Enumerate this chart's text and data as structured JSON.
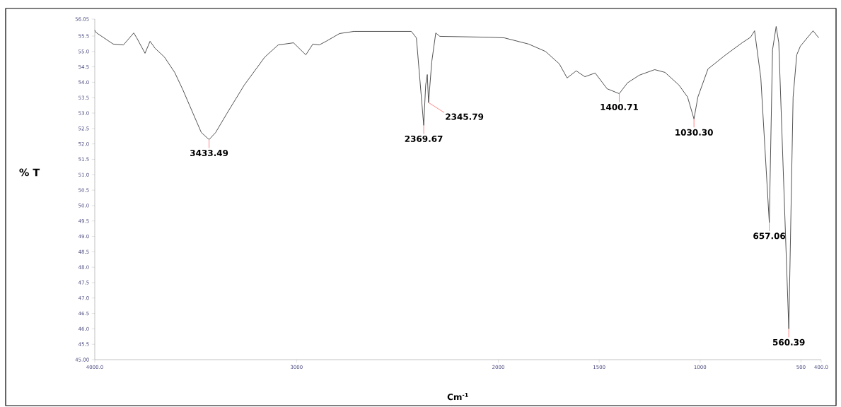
{
  "chart_data": {
    "type": "line",
    "xlabel": "Cm$^{-1}$",
    "ylabel": "% T",
    "xlim": [
      4000,
      400
    ],
    "ylim": [
      45,
      56.05
    ],
    "xticks": [
      {
        "value": 4000,
        "label": "4000.0"
      },
      3000,
      2000,
      1500,
      1000,
      500,
      {
        "value": 400,
        "label": "400.0"
      }
    ],
    "yticks": [
      {
        "value": 45,
        "label": "45.00"
      },
      {
        "value": 45.5,
        "label": "45.5"
      },
      {
        "value": 46,
        "label": "46.0"
      },
      {
        "value": 46.5,
        "label": "46.5"
      },
      {
        "value": 47,
        "label": "47.0"
      },
      {
        "value": 47.5,
        "label": "47.5"
      },
      {
        "value": 48,
        "label": "48.0"
      },
      {
        "value": 48.5,
        "label": "48.5"
      },
      {
        "value": 49,
        "label": "49.0"
      },
      {
        "value": 49.5,
        "label": "49.5"
      },
      {
        "value": 50,
        "label": "50.0"
      },
      {
        "value": 50.5,
        "label": "50.5"
      },
      {
        "value": 51,
        "label": "51.0"
      },
      {
        "value": 51.5,
        "label": "51.5"
      },
      {
        "value": 52,
        "label": "52.0"
      },
      {
        "value": 52.5,
        "label": "52.5"
      },
      {
        "value": 53,
        "label": "53.0"
      },
      {
        "value": 53.5,
        "label": "53.5"
      },
      {
        "value": 54,
        "label": "54.0"
      },
      {
        "value": 54.5,
        "label": "54.5"
      },
      {
        "value": 55,
        "label": "55.0"
      },
      {
        "value": 55.5,
        "label": "55.5"
      },
      {
        "value": 56.05,
        "label": "56.05"
      }
    ],
    "grid": false,
    "marker": "none",
    "line_style": "solid",
    "series": [
      {
        "color": "#404040",
        "x": [
          4000,
          3995,
          3909,
          3858,
          3807,
          3792,
          3751,
          3726,
          3701,
          3655,
          3604,
          3563,
          3513,
          3472,
          3433.49,
          3401,
          3345,
          3259,
          3157,
          3091,
          3015,
          2954,
          2919,
          2888,
          2853,
          2787,
          2716,
          2431,
          2406,
          2369.67,
          2360,
          2352,
          2345.79,
          2330,
          2310,
          2290,
          2041,
          1970,
          1850,
          1766,
          1698,
          1659,
          1614,
          1571,
          1520,
          1461,
          1400.71,
          1360,
          1301,
          1225,
          1174,
          1105,
          1062,
          1030.3,
          1011,
          961,
          877,
          792,
          750,
          730,
          699,
          657.06,
          641,
          623,
          610,
          560.39,
          539,
          521,
          503,
          440,
          412
        ],
        "values": [
          55.69,
          55.62,
          55.24,
          55.21,
          55.6,
          55.44,
          54.94,
          55.33,
          55.1,
          54.82,
          54.32,
          53.75,
          52.99,
          52.37,
          52.14,
          52.37,
          52.99,
          53.91,
          54.82,
          55.21,
          55.28,
          54.89,
          55.24,
          55.21,
          55.33,
          55.58,
          55.65,
          55.65,
          55.44,
          52.6,
          53.91,
          54.25,
          53.34,
          54.66,
          55.6,
          55.49,
          55.46,
          55.44,
          55.24,
          55.0,
          54.6,
          54.14,
          54.37,
          54.18,
          54.3,
          53.79,
          53.63,
          53.98,
          54.23,
          54.41,
          54.32,
          53.91,
          53.52,
          52.81,
          53.52,
          54.43,
          54.87,
          55.28,
          55.46,
          55.67,
          54.14,
          49.45,
          55.05,
          55.81,
          55.28,
          46.0,
          53.52,
          54.89,
          55.17,
          55.67,
          55.44
        ]
      }
    ],
    "annotations": [
      {
        "text": "3433.49",
        "x": 3433.49,
        "y": 52.14
      },
      {
        "text": "2369.67",
        "x": 2369.67,
        "y": 52.6
      },
      {
        "text": "2345.79",
        "x": 2345.79,
        "y": 53.34
      },
      {
        "text": "1400.71",
        "x": 1400.71,
        "y": 53.63
      },
      {
        "text": "1030.30",
        "x": 1030.3,
        "y": 52.81
      },
      {
        "text": "657.06",
        "x": 657.06,
        "y": 49.45
      },
      {
        "text": "560.39",
        "x": 560.39,
        "y": 46.0
      }
    ]
  }
}
